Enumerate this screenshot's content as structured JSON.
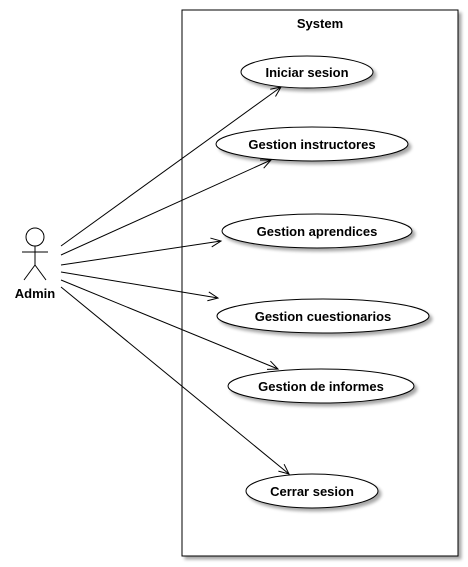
{
  "system": {
    "title": "System"
  },
  "actor": {
    "name": "Admin"
  },
  "use_cases": [
    {
      "label": "Iniciar sesion"
    },
    {
      "label": "Gestion instructores"
    },
    {
      "label": "Gestion aprendices"
    },
    {
      "label": "Gestion cuestionarios"
    },
    {
      "label": "Gestion de informes"
    },
    {
      "label": "Cerrar sesion"
    }
  ]
}
